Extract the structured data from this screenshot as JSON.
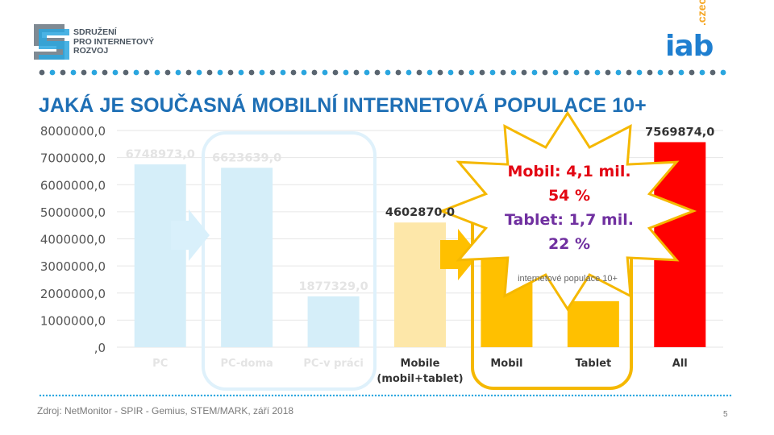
{
  "header": {
    "org_logo_lines": [
      "SDRUŽENÍ",
      "PRO INTERNETOVÝ",
      "ROZVOJ"
    ],
    "iab_logo": {
      "word": "iab",
      "suffix": ".czech"
    }
  },
  "title": "JAKÁ JE SOUČASNÁ MOBILNÍ INTERNETOVÁ POPULACE 10+",
  "chart_data": {
    "type": "bar",
    "categories": [
      "PC",
      "PC-doma",
      "PC-v práci",
      "Mobile\n(mobil+tablet)",
      "Mobil",
      "Tablet",
      "All"
    ],
    "values": [
      6748973.0,
      6623639.0,
      1877329.0,
      4602870.0,
      4100000,
      1700000,
      7569874.0
    ],
    "data_labels": [
      "6748973,0",
      "6623639,0",
      "1877329,0",
      "4602870,0",
      "",
      "",
      "7569874,0"
    ],
    "y_ticks": [
      "8000000,0",
      "7000000,0",
      "6000000,0",
      "5000000,0",
      "4000000,0",
      "3000000,0",
      "2000000,0",
      "1000000,0",
      ",0"
    ],
    "ylim": [
      0,
      8000000
    ],
    "grid": true,
    "colors": {
      "faded_blue": "#d5eef9",
      "faded_orange": "#fde7a9",
      "orange": "#ffc000",
      "red": "#ff0000",
      "faded_label": "#e4e4e4",
      "highlight_outline_blue": "#dff1fb",
      "highlight_outline_orange": "#f5b800",
      "arrow_blue": "#d9f0fb",
      "arrow_orange": "#ffc000",
      "star_fill": "#ffffff",
      "star_stroke": "#f5b800"
    }
  },
  "callout": {
    "line1": "Mobil: 4,1 mil.",
    "line2": "54 %",
    "line3": "Tablet: 1,7 mil.",
    "line4": "22 %",
    "note": "internetové populace 10+"
  },
  "footer": {
    "source": "Zdroj: NetMonitor - SPIR - Gemius,  STEM/MARK, září 2018",
    "page_number": "5"
  }
}
